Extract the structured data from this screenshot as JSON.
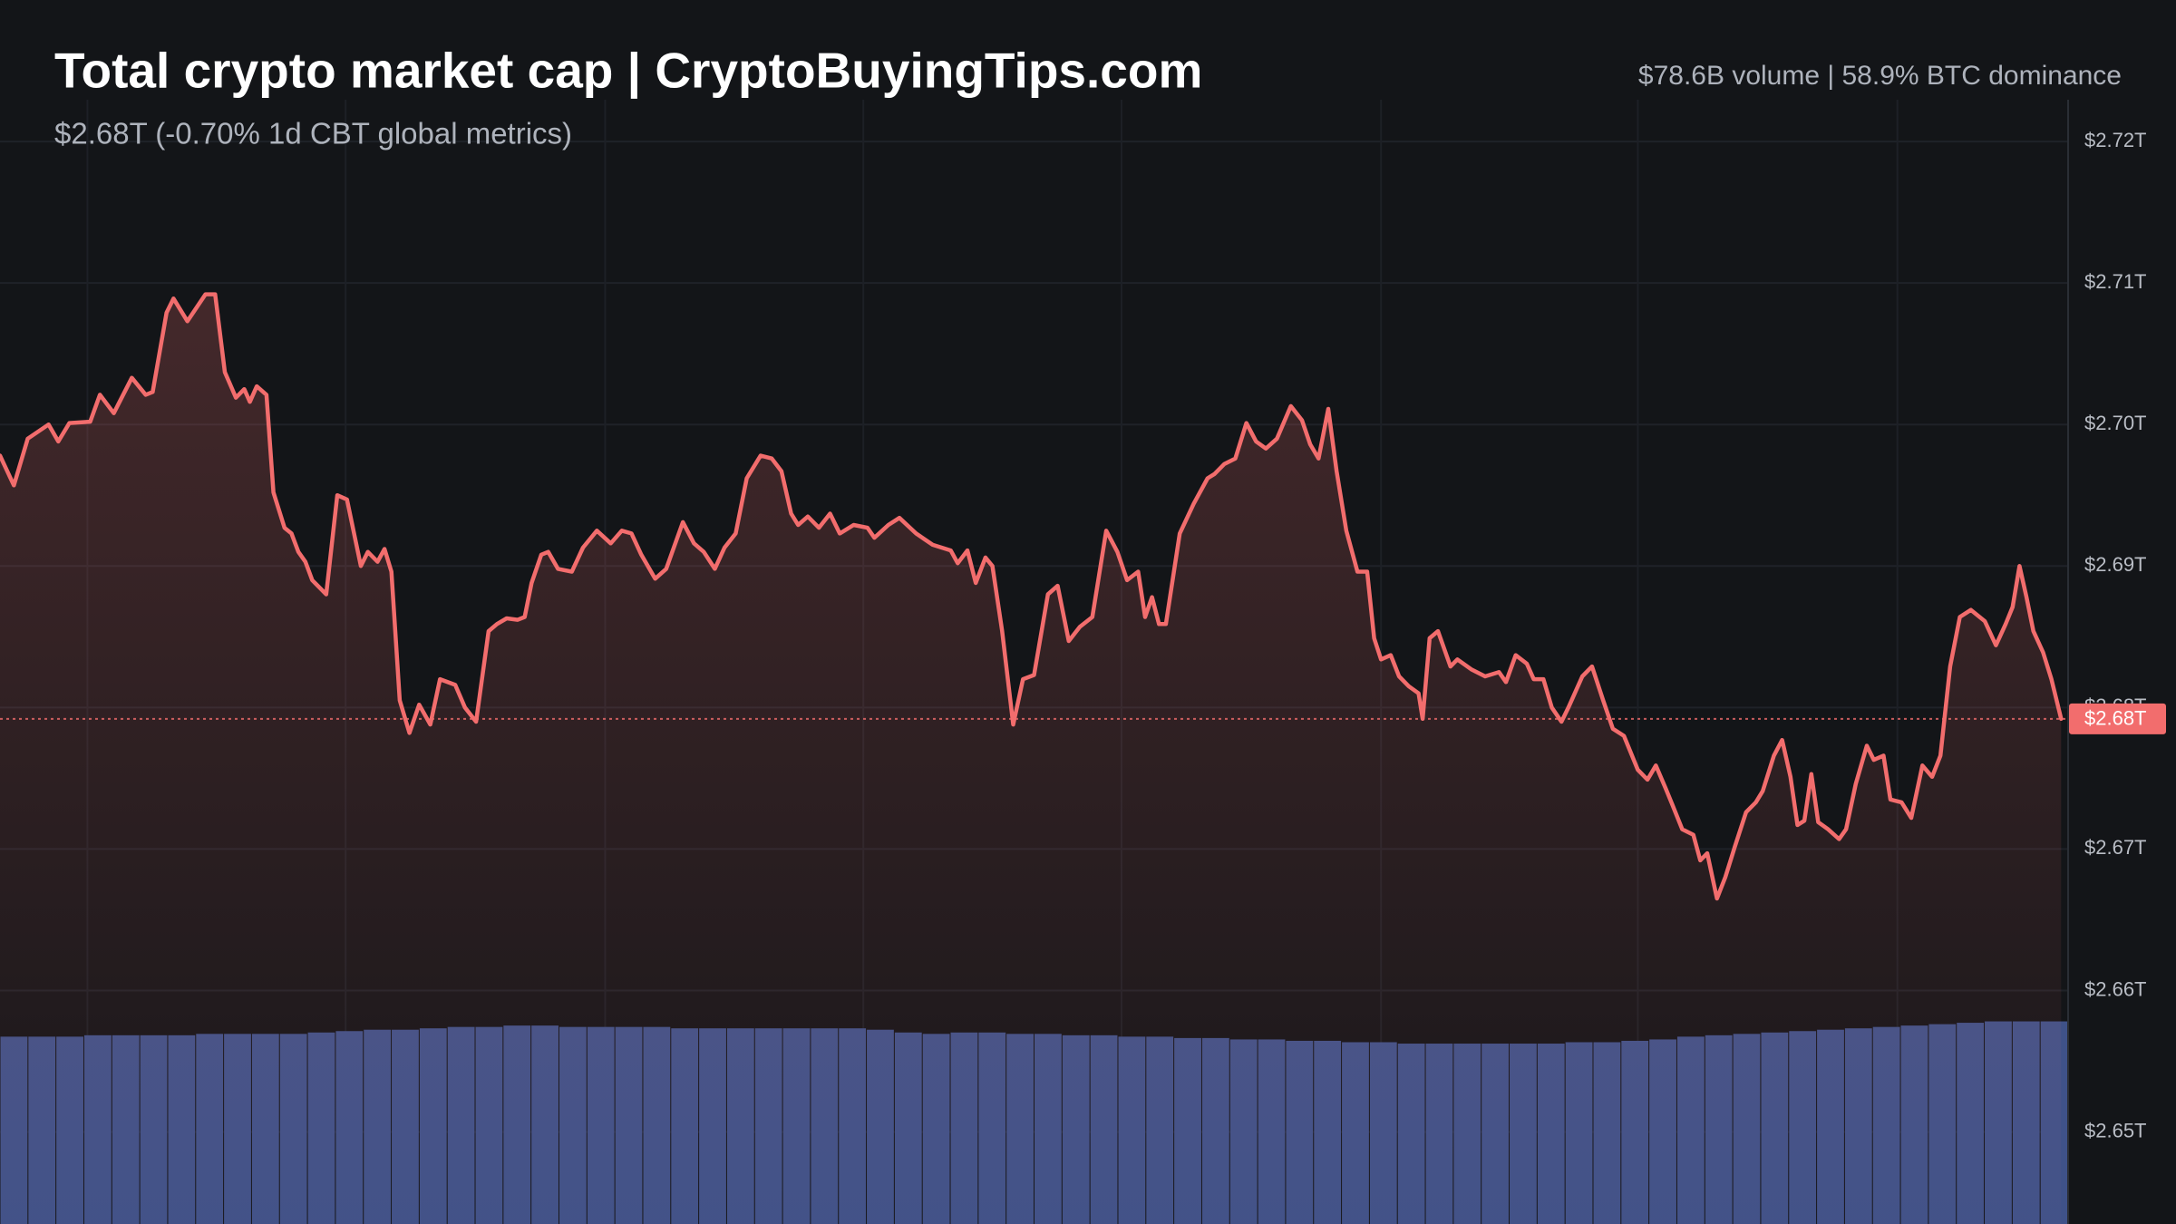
{
  "chart_data": {
    "type": "line",
    "title": "Total crypto market cap | CryptoBuyingTips.com",
    "subtitle": "$2.68T (-0.70% 1d CBT global metrics)",
    "stats": "$78.6B volume | 58.9% BTC dominance",
    "xlim": [
      0,
      1490
    ],
    "xticks": [
      63,
      249,
      436,
      622,
      808,
      995,
      1180,
      1367
    ],
    "ylim": [
      2.6435,
      2.73
    ],
    "yticks": [
      {
        "value": 2.72,
        "label": "$2.72T"
      },
      {
        "value": 2.71,
        "label": "$2.71T"
      },
      {
        "value": 2.7,
        "label": "$2.70T"
      },
      {
        "value": 2.69,
        "label": "$2.69T"
      },
      {
        "value": 2.68,
        "label": "$2.68T"
      },
      {
        "value": 2.67,
        "label": "$2.67T"
      },
      {
        "value": 2.66,
        "label": "$2.66T"
      },
      {
        "value": 2.65,
        "label": "$2.65T"
      }
    ],
    "grid": true,
    "current_value": 2.6792,
    "current_label": "$2.68T",
    "x": [
      0,
      10,
      20,
      35,
      42,
      50,
      65,
      72,
      82,
      95,
      105,
      110,
      120,
      125,
      135,
      148,
      155,
      162,
      170,
      176,
      180,
      185,
      192,
      197,
      205,
      210,
      215,
      220,
      225,
      235,
      243,
      250,
      260,
      265,
      272,
      277,
      282,
      288,
      295,
      302,
      310,
      317,
      328,
      335,
      343,
      352,
      358,
      365,
      373,
      378,
      383,
      390,
      395,
      402,
      412,
      420,
      430,
      440,
      448,
      455,
      462,
      472,
      480,
      492,
      500,
      507,
      515,
      522,
      530,
      538,
      548,
      556,
      563,
      570,
      575,
      582,
      590,
      598,
      605,
      615,
      625,
      630,
      640,
      648,
      660,
      672,
      685,
      690,
      697,
      703,
      710,
      715,
      722,
      730,
      737,
      745,
      755,
      762,
      770,
      778,
      787,
      797,
      805,
      812,
      820,
      825,
      830,
      835,
      840,
      850,
      860,
      870,
      875,
      882,
      890,
      898,
      905,
      912,
      920,
      930,
      938,
      944,
      950,
      957,
      963,
      970,
      978,
      985,
      990,
      995,
      1002,
      1008,
      1015,
      1022,
      1025,
      1030,
      1036,
      1045,
      1050,
      1060,
      1070,
      1080,
      1085,
      1092,
      1100,
      1105,
      1112,
      1118,
      1125,
      1130,
      1140,
      1147,
      1155,
      1162,
      1170,
      1180,
      1187,
      1193,
      1200,
      1205,
      1212,
      1220,
      1225,
      1230,
      1237,
      1243,
      1250,
      1258,
      1265,
      1270,
      1278,
      1284,
      1290,
      1295,
      1300,
      1305,
      1310,
      1317,
      1325,
      1330,
      1337,
      1345,
      1350,
      1357,
      1362,
      1370,
      1377,
      1385,
      1392,
      1398,
      1405,
      1412,
      1420,
      1430,
      1438,
      1445,
      1450,
      1455,
      1460,
      1465,
      1472,
      1478,
      1485
    ],
    "series": [
      {
        "color": "#f26d6d",
        "values": [
          2.6978,
          2.6957,
          2.699,
          2.7,
          2.6988,
          2.7001,
          2.7002,
          2.7021,
          2.7008,
          2.7033,
          2.7021,
          2.7023,
          2.7079,
          2.7089,
          2.7073,
          2.7092,
          2.7092,
          2.7037,
          2.7019,
          2.7025,
          2.7016,
          2.7027,
          2.7021,
          2.6952,
          2.6927,
          2.6923,
          2.691,
          2.6903,
          2.689,
          2.688,
          2.695,
          2.6947,
          2.69,
          2.691,
          2.6903,
          2.6912,
          2.6896,
          2.6805,
          2.6782,
          2.6802,
          2.6788,
          2.682,
          2.6816,
          2.68,
          2.679,
          2.6854,
          2.6859,
          2.6863,
          2.6862,
          2.6864,
          2.6888,
          2.6908,
          2.691,
          2.6898,
          2.6896,
          2.6913,
          2.6925,
          2.6916,
          2.6925,
          2.6923,
          2.6908,
          2.6891,
          2.6898,
          2.6931,
          2.6916,
          2.691,
          2.6898,
          2.6913,
          2.6923,
          2.6962,
          2.6978,
          2.6976,
          2.6967,
          2.6937,
          2.6929,
          2.6935,
          2.6927,
          2.6937,
          2.6923,
          2.6929,
          2.6927,
          2.692,
          2.6929,
          2.6934,
          2.6923,
          2.6915,
          2.6911,
          2.6902,
          2.6911,
          2.6888,
          2.6906,
          2.69,
          2.6854,
          2.6788,
          2.682,
          2.6823,
          2.688,
          2.6886,
          2.6847,
          2.6857,
          2.6864,
          2.6925,
          2.691,
          2.689,
          2.6896,
          2.6864,
          2.6878,
          2.6859,
          2.6859,
          2.6923,
          2.6944,
          2.6962,
          2.6965,
          2.6972,
          2.6976,
          2.7001,
          2.6988,
          2.6983,
          2.699,
          2.7013,
          2.7003,
          2.6986,
          2.6976,
          2.7011,
          2.6967,
          2.6925,
          2.6896,
          2.6896,
          2.6849,
          2.6834,
          2.6837,
          2.6822,
          2.6815,
          2.681,
          2.6792,
          2.6849,
          2.6854,
          2.6829,
          2.6834,
          2.6827,
          2.6822,
          2.6825,
          2.6818,
          2.6837,
          2.6831,
          2.682,
          2.682,
          2.68,
          2.679,
          2.68,
          2.6822,
          2.6829,
          2.6805,
          2.6785,
          2.678,
          2.6756,
          2.6749,
          2.6759,
          2.6743,
          2.6731,
          2.6714,
          2.671,
          2.6692,
          2.6697,
          2.6665,
          2.668,
          2.6702,
          2.6726,
          2.6733,
          2.6741,
          2.6766,
          2.6777,
          2.6751,
          2.6717,
          2.672,
          2.6753,
          2.6719,
          2.6714,
          2.6707,
          2.6714,
          2.6746,
          2.6773,
          2.6763,
          2.6766,
          2.6735,
          2.6733,
          2.6722,
          2.6759,
          2.6751,
          2.6766,
          2.6829,
          2.6864,
          2.6869,
          2.6861,
          2.6844,
          2.6859,
          2.6871,
          2.69,
          2.6878,
          2.6854,
          2.6839,
          2.682,
          2.6792
        ]
      }
    ],
    "volume": {
      "color": "#3f5289",
      "values": [
        135,
        135,
        135,
        136,
        136,
        136,
        136,
        137,
        137,
        137,
        137,
        138,
        139,
        140,
        140,
        141,
        142,
        142,
        143,
        143,
        142,
        142,
        142,
        142,
        141,
        141,
        141,
        141,
        141,
        141,
        141,
        140,
        138,
        137,
        138,
        138,
        137,
        137,
        136,
        136,
        135,
        135,
        134,
        134,
        133,
        133,
        132,
        132,
        131,
        131,
        130,
        130,
        130,
        130,
        130,
        130,
        131,
        131,
        132,
        133,
        135,
        136,
        137,
        138,
        139,
        140,
        141,
        142,
        143,
        144,
        145,
        146,
        146,
        146
      ]
    }
  }
}
